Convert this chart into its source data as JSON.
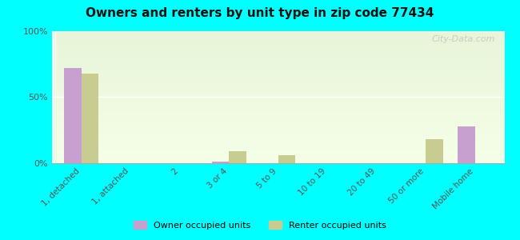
{
  "title": "Owners and renters by unit type in zip code 77434",
  "categories": [
    "1, detached",
    "1, attached",
    "2",
    "3 or 4",
    "5 to 9",
    "10 to 19",
    "20 to 49",
    "50 or more",
    "Mobile home"
  ],
  "owner_values": [
    72,
    0,
    0,
    1,
    0,
    0,
    0,
    0,
    28
  ],
  "renter_values": [
    68,
    0,
    0,
    9,
    6,
    0,
    0,
    18,
    0
  ],
  "owner_color": "#c8a0d0",
  "renter_color": "#c8cc90",
  "background_color": "#00ffff",
  "plot_bg_top": "#e8f5e0",
  "plot_bg_bottom": "#f8fff0",
  "ylabel_ticks": [
    "0%",
    "50%",
    "100%"
  ],
  "ytick_values": [
    0,
    50,
    100
  ],
  "ylim": [
    0,
    100
  ],
  "bar_width": 0.35,
  "legend_owner": "Owner occupied units",
  "legend_renter": "Renter occupied units",
  "watermark": "City-Data.com"
}
